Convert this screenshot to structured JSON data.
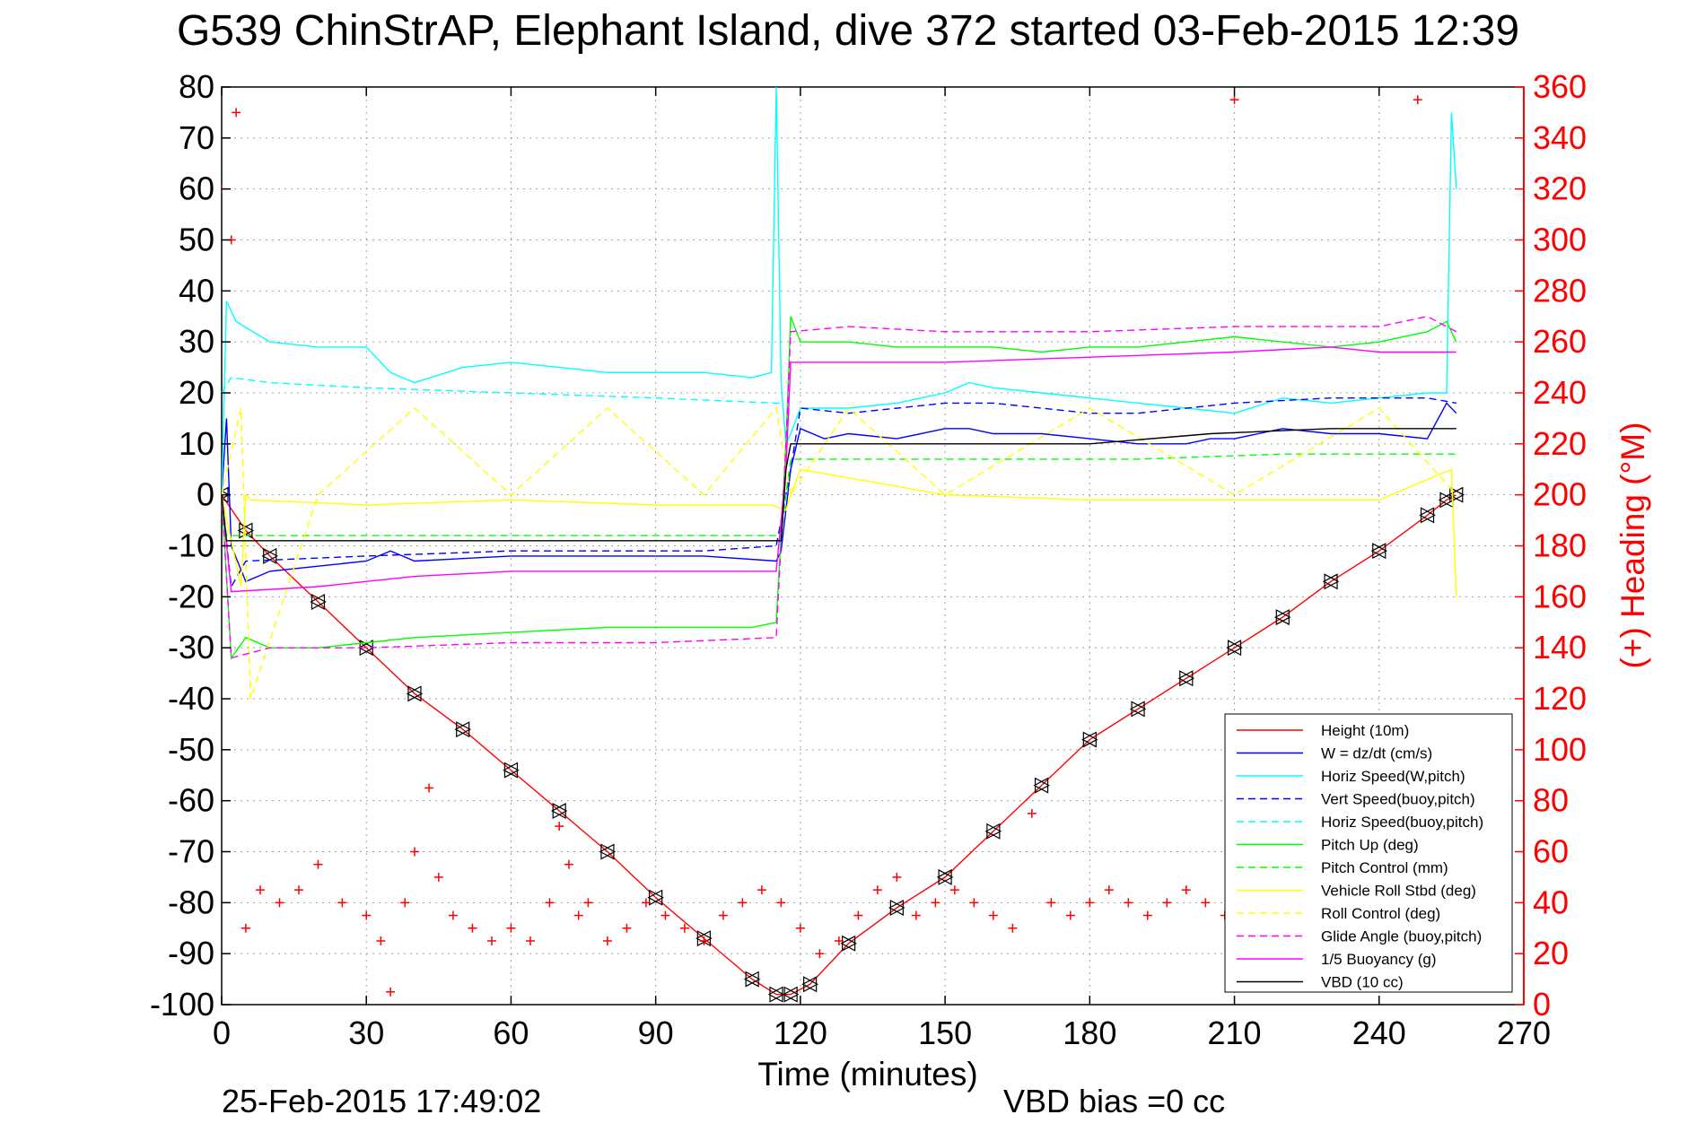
{
  "title": "G539 ChinStrAP, Elephant Island, dive 372 started 03-Feb-2015 12:39",
  "footer": {
    "timestamp": "25-Feb-2015 17:49:02",
    "vbd_bias": "VBD bias =0 cc"
  },
  "colors": {
    "left_axis": "#000000",
    "right_axis": "#ff0000",
    "grid": "#a0a0a0"
  },
  "chart_data": {
    "type": "line",
    "xlabel": "Time (minutes)",
    "ylabel": "",
    "y2label": "(+) Heading (°M)",
    "xlim": [
      0,
      270
    ],
    "ylim": [
      -100,
      80
    ],
    "y2lim": [
      0,
      360
    ],
    "xticks": [
      0,
      30,
      60,
      90,
      120,
      150,
      180,
      210,
      240,
      270
    ],
    "yticks": [
      80,
      70,
      60,
      50,
      40,
      30,
      20,
      10,
      0,
      -10,
      -20,
      -30,
      -40,
      -50,
      -60,
      -70,
      -80,
      -90,
      -100
    ],
    "y2ticks": [
      360,
      340,
      320,
      300,
      280,
      260,
      240,
      220,
      200,
      180,
      160,
      140,
      120,
      100,
      80,
      60,
      40,
      20,
      0
    ],
    "grid": true,
    "legend_position": "bottom-right",
    "series": [
      {
        "name": "Height (10m)",
        "color": "#ff0000",
        "style": "solid",
        "marker": "triangle",
        "x": [
          0,
          5,
          10,
          20,
          30,
          40,
          50,
          60,
          70,
          80,
          90,
          100,
          110,
          115,
          118,
          122,
          130,
          140,
          150,
          160,
          170,
          180,
          190,
          200,
          210,
          220,
          230,
          240,
          250,
          254,
          256
        ],
        "y": [
          0,
          -7,
          -12,
          -21,
          -30,
          -39,
          -46,
          -54,
          -62,
          -70,
          -79,
          -87,
          -95,
          -98,
          -98,
          -96,
          -88,
          -81,
          -75,
          -66,
          -57,
          -48,
          -42,
          -36,
          -30,
          -24,
          -17,
          -11,
          -4,
          -1,
          0
        ]
      },
      {
        "name": "W = dz/dt (cm/s)",
        "color": "#0000ff",
        "style": "solid",
        "x": [
          0,
          1,
          2,
          5,
          10,
          20,
          30,
          35,
          40,
          60,
          80,
          100,
          115,
          116,
          118,
          120,
          125,
          130,
          140,
          150,
          155,
          160,
          170,
          180,
          190,
          200,
          205,
          210,
          220,
          230,
          240,
          250,
          254,
          256
        ],
        "y": [
          0,
          15,
          -10,
          -17,
          -15,
          -14,
          -13,
          -11,
          -13,
          -12,
          -12,
          -12,
          -13,
          -11,
          5,
          13,
          11,
          12,
          11,
          13,
          13,
          12,
          12,
          11,
          10,
          10,
          11,
          11,
          13,
          12,
          12,
          11,
          18,
          16
        ]
      },
      {
        "name": "Horiz Speed(W,pitch)",
        "color": "#00ffff",
        "style": "solid",
        "x": [
          0,
          1,
          3,
          10,
          20,
          30,
          35,
          40,
          50,
          60,
          70,
          80,
          90,
          100,
          110,
          114,
          115,
          116,
          117,
          118,
          120,
          130,
          140,
          150,
          155,
          160,
          170,
          180,
          190,
          200,
          210,
          220,
          230,
          240,
          250,
          254,
          255,
          256
        ],
        "y": [
          0,
          38,
          34,
          30,
          29,
          29,
          24,
          22,
          25,
          26,
          25,
          24,
          24,
          24,
          23,
          24,
          80,
          22,
          10,
          12,
          17,
          17,
          18,
          20,
          22,
          21,
          20,
          19,
          18,
          17,
          16,
          19,
          18,
          19,
          20,
          20,
          75,
          60
        ]
      },
      {
        "name": "Vert Speed(buoy,pitch)",
        "color": "#0000ff",
        "style": "dashed",
        "x": [
          0,
          2,
          5,
          30,
          60,
          100,
          115,
          118,
          120,
          130,
          150,
          160,
          170,
          180,
          190,
          210,
          230,
          240,
          250,
          256
        ],
        "y": [
          0,
          -18,
          -13,
          -12,
          -11,
          -11,
          -10,
          5,
          17,
          16,
          18,
          18,
          17,
          16,
          16,
          18,
          19,
          19,
          19,
          18
        ]
      },
      {
        "name": "Horiz Speed(buoy,pitch)",
        "color": "#00ffff",
        "style": "dashed",
        "x": [
          0,
          2,
          10,
          30,
          60,
          90,
          115,
          116
        ],
        "y": [
          20,
          23,
          22,
          21,
          20,
          19,
          18,
          18
        ]
      },
      {
        "name": "Pitch Up (deg)",
        "color": "#00ff00",
        "style": "solid",
        "x": [
          0,
          2,
          5,
          10,
          20,
          30,
          40,
          60,
          80,
          100,
          110,
          115,
          117,
          118,
          120,
          130,
          140,
          150,
          160,
          170,
          180,
          190,
          200,
          210,
          220,
          230,
          240,
          250,
          254,
          256
        ],
        "y": [
          0,
          -32,
          -28,
          -30,
          -30,
          -29,
          -28,
          -27,
          -26,
          -26,
          -26,
          -25,
          10,
          35,
          30,
          30,
          29,
          29,
          29,
          28,
          29,
          29,
          30,
          31,
          30,
          29,
          30,
          32,
          34,
          30
        ]
      },
      {
        "name": "Pitch Control (mm)",
        "color": "#00ff00",
        "style": "dashed",
        "x": [
          0,
          1,
          116,
          117,
          118,
          140,
          160,
          190,
          220,
          240,
          256
        ],
        "y": [
          0,
          -8,
          -8,
          0,
          7,
          7,
          7,
          7,
          8,
          8,
          8
        ]
      },
      {
        "name": "Vehicle Roll Stbd (deg)",
        "color": "#ffff00",
        "style": "solid",
        "x": [
          0,
          4,
          5,
          6,
          30,
          60,
          90,
          114,
          117,
          118,
          120,
          150,
          180,
          210,
          240,
          255,
          256
        ],
        "y": [
          0,
          -18,
          0,
          -1,
          -2,
          -1,
          -2,
          -2,
          -3,
          0,
          5,
          0,
          -1,
          -1,
          -1,
          5,
          -20
        ]
      },
      {
        "name": "Roll Control (deg)",
        "color": "#ffff00",
        "style": "dashed",
        "x": [
          0,
          4,
          6,
          20,
          40,
          60,
          80,
          100,
          115,
          118,
          130,
          150,
          180,
          210,
          240,
          256
        ],
        "y": [
          0,
          17,
          -40,
          0,
          17,
          0,
          17,
          0,
          17,
          0,
          17,
          0,
          17,
          0,
          17,
          0
        ]
      },
      {
        "name": "Glide Angle (buoy,pitch)",
        "color": "#ff00ff",
        "style": "dashed",
        "x": [
          0,
          2,
          10,
          30,
          60,
          90,
          115,
          117,
          118,
          130,
          150,
          180,
          210,
          240,
          250,
          256
        ],
        "y": [
          0,
          -32,
          -30,
          -30,
          -29,
          -29,
          -28,
          10,
          32,
          33,
          32,
          32,
          33,
          33,
          35,
          32
        ]
      },
      {
        "name": "1/5 Buoyancy (g)",
        "color": "#ff00ff",
        "style": "solid",
        "x": [
          0,
          2,
          20,
          40,
          60,
          90,
          115,
          117,
          118,
          130,
          150,
          180,
          210,
          230,
          240,
          256
        ],
        "y": [
          0,
          -19,
          -18,
          -16,
          -15,
          -15,
          -15,
          5,
          26,
          26,
          26,
          27,
          28,
          29,
          28,
          28
        ]
      },
      {
        "name": "VBD (10 cc)",
        "color": "#000000",
        "style": "solid",
        "x": [
          0,
          1,
          116,
          117,
          118,
          120,
          150,
          180,
          205,
          230,
          256
        ],
        "y": [
          0,
          -9,
          -9,
          5,
          10,
          10,
          10,
          10,
          12,
          13,
          13
        ]
      },
      {
        "name": "Heading",
        "color": "#ff0000",
        "style": "markers",
        "marker": "plus",
        "axis": "right",
        "x": [
          0,
          2,
          3,
          5,
          8,
          12,
          16,
          20,
          25,
          30,
          33,
          35,
          38,
          40,
          43,
          45,
          48,
          52,
          56,
          60,
          64,
          68,
          70,
          72,
          74,
          76,
          80,
          84,
          88,
          92,
          96,
          100,
          104,
          108,
          112,
          116,
          120,
          124,
          128,
          132,
          136,
          140,
          144,
          148,
          152,
          156,
          160,
          164,
          168,
          172,
          176,
          180,
          184,
          188,
          192,
          196,
          200,
          204,
          208,
          210,
          212,
          216,
          220,
          224,
          228,
          232,
          236,
          240,
          244,
          248,
          252,
          256
        ],
        "y": [
          320,
          300,
          350,
          30,
          45,
          40,
          45,
          55,
          40,
          35,
          25,
          5,
          40,
          60,
          85,
          50,
          35,
          30,
          25,
          30,
          25,
          40,
          70,
          55,
          35,
          40,
          25,
          30,
          40,
          35,
          30,
          25,
          35,
          40,
          45,
          40,
          30,
          20,
          25,
          35,
          45,
          50,
          35,
          40,
          45,
          40,
          35,
          30,
          75,
          40,
          35,
          40,
          45,
          40,
          35,
          40,
          45,
          40,
          35,
          355,
          40,
          35,
          40,
          45,
          40,
          35,
          40,
          45,
          40,
          355,
          40,
          45
        ]
      }
    ]
  }
}
